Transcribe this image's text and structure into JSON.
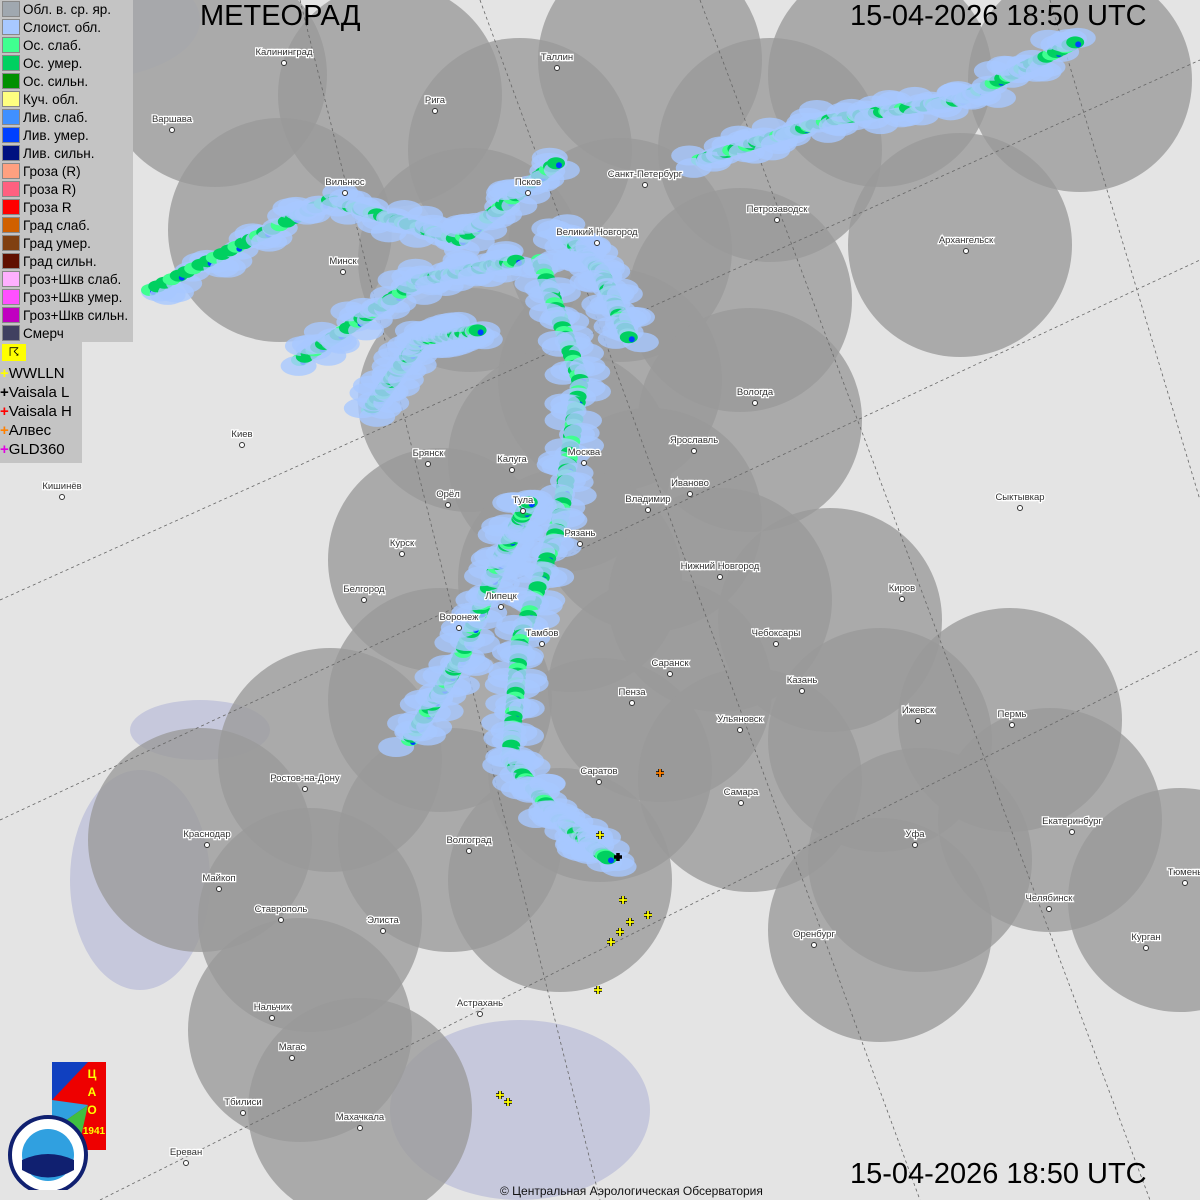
{
  "header": {
    "title": "МЕТЕОРАД",
    "timestamp_top": "15-04-2026  18:50 UTC",
    "timestamp_bottom": "15-04-2026  18:50 UTC"
  },
  "legend": [
    {
      "label": "Обл. в. ср. яр.",
      "color": "#a0a8b0"
    },
    {
      "label": "Слоист. обл.",
      "color": "#a8c8ff"
    },
    {
      "label": "Ос. слаб.",
      "color": "#40ff90"
    },
    {
      "label": "Ос. умер.",
      "color": "#00d060"
    },
    {
      "label": "Ос. сильн.",
      "color": "#009000"
    },
    {
      "label": "Куч. обл.",
      "color": "#ffff80"
    },
    {
      "label": "Лив. слаб.",
      "color": "#4090ff"
    },
    {
      "label": "Лив. умер.",
      "color": "#0040ff"
    },
    {
      "label": "Лив. сильн.",
      "color": "#001080"
    },
    {
      "label": "Гроза (R)",
      "color": "#ffa080"
    },
    {
      "label": "Гроза R)",
      "color": "#ff6080"
    },
    {
      "label": "Гроза R",
      "color": "#ff0000"
    },
    {
      "label": "Град слаб.",
      "color": "#d06000"
    },
    {
      "label": "Град умер.",
      "color": "#804010"
    },
    {
      "label": "Град сильн.",
      "color": "#601000"
    },
    {
      "label": "Гроз+Шкв слаб.",
      "color": "#ffb0ff"
    },
    {
      "label": "Гроз+Шкв умер.",
      "color": "#ff50ff"
    },
    {
      "label": "Гроз+Шкв сильн.",
      "color": "#c000c0"
    },
    {
      "label": "Смерч",
      "color": "#404060"
    }
  ],
  "lightning_toggle": "☈",
  "lightning_networks": [
    {
      "label": "WWLLN",
      "color": "#ffff00"
    },
    {
      "label": "Vaisala L",
      "color": "#000000"
    },
    {
      "label": "Vaisala H",
      "color": "#ff0000"
    },
    {
      "label": "Алвес",
      "color": "#ff8000"
    },
    {
      "label": "GLD360",
      "color": "#e000e0"
    }
  ],
  "cities": [
    "Калининград",
    "Таллин",
    "Рига",
    "Варшава",
    "Вильнюс",
    "Псков",
    "Санкт-Петербург",
    "Петрозаводск",
    "Архангельск",
    "Великий Новгород",
    "Минск",
    "Вологда",
    "Ярославль",
    "Иваново",
    "Москва",
    "Калуга",
    "Брянск",
    "Киев",
    "Кишинёв",
    "Орёл",
    "Тула",
    "Владимир",
    "Рязань",
    "Сыктывкар",
    "Курск",
    "Нижний Новгород",
    "Киров",
    "Белгород",
    "Липецк",
    "Воронеж",
    "Тамбов",
    "Чебоксары",
    "Саранск",
    "Казань",
    "Пенза",
    "Ижевск",
    "Пермь",
    "Ульяновск",
    "Ростов-на-Дону",
    "Саратов",
    "Самара",
    "Краснодар",
    "Волгоград",
    "Уфа",
    "Екатеринбург",
    "Майкоп",
    "Ставрополь",
    "Элиста",
    "Челябинск",
    "Оренбург",
    "Курган",
    "Тюмень",
    "Астрахань",
    "Нальчик",
    "Магас",
    "Тбилиси",
    "Махачкала",
    "Ереван"
  ],
  "logos": {
    "cao": "ЦАО 1941",
    "roshydromet": "РОСГИДРОМЕТ ROSHYDROMET"
  },
  "copyright": "© Центральная Аэрологическая Обсерватория"
}
